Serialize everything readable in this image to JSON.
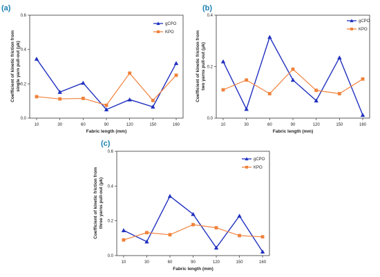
{
  "chart_data": [
    {
      "panel": "(a)",
      "type": "line",
      "categories": [
        "10",
        "30",
        "60",
        "90",
        "120",
        "150",
        "160"
      ],
      "ylim": [
        0.0,
        0.6
      ],
      "yticks": [
        "0.0",
        "0.2",
        "0.4",
        "0.6"
      ],
      "xlabel": "Fabric length (mm)",
      "ylabel": [
        "Coefficient of kinetic friction from",
        "single yarn pull-out (μk)"
      ],
      "legend_position": "top-right",
      "series": [
        {
          "name": "gCPO",
          "color": "#1f2fbf",
          "marker": "triangle",
          "values": [
            0.345,
            0.152,
            0.205,
            0.05,
            0.108,
            0.066,
            0.32
          ]
        },
        {
          "name": "KPO",
          "color": "#f0813a",
          "marker": "square",
          "values": [
            0.125,
            0.112,
            0.115,
            0.075,
            0.262,
            0.103,
            0.25
          ]
        }
      ]
    },
    {
      "panel": "(b)",
      "type": "line",
      "categories": [
        "10",
        "30",
        "60",
        "90",
        "120",
        "150",
        "160"
      ],
      "ylim": [
        0.0,
        0.4
      ],
      "yticks": [
        "0.0",
        "0.2",
        "0.4"
      ],
      "xlabel": "Fabric length (mm)",
      "ylabel": [
        "Coefficient of kinetic friction from",
        "two yarns pull-out (μk)"
      ],
      "legend_position": "top-right",
      "series": [
        {
          "name": "gCPO",
          "color": "#1f2fbf",
          "marker": "triangle",
          "values": [
            0.22,
            0.035,
            0.315,
            0.148,
            0.068,
            0.235,
            0.012
          ]
        },
        {
          "name": "KPO",
          "color": "#f0813a",
          "marker": "square",
          "values": [
            0.11,
            0.148,
            0.095,
            0.19,
            0.108,
            0.095,
            0.152
          ]
        }
      ]
    },
    {
      "panel": "(c)",
      "type": "line",
      "categories": [
        "10",
        "30",
        "60",
        "90",
        "120",
        "150",
        "160"
      ],
      "ylim": [
        0.0,
        0.6
      ],
      "yticks": [
        "0.0",
        "0.2",
        "0.4",
        "0.6"
      ],
      "xlabel": "Fabric length (mm)",
      "ylabel": [
        "Coefficient of kinetic friction from",
        "three yarns pull-out (μk)"
      ],
      "legend_position": "top-right",
      "series": [
        {
          "name": "gCPO",
          "color": "#1f2fbf",
          "marker": "triangle",
          "values": [
            0.145,
            0.08,
            0.342,
            0.238,
            0.045,
            0.228,
            0.022
          ]
        },
        {
          "name": "KPO",
          "color": "#f0813a",
          "marker": "square",
          "values": [
            0.09,
            0.132,
            0.12,
            0.178,
            0.16,
            0.115,
            0.108
          ]
        }
      ]
    }
  ]
}
